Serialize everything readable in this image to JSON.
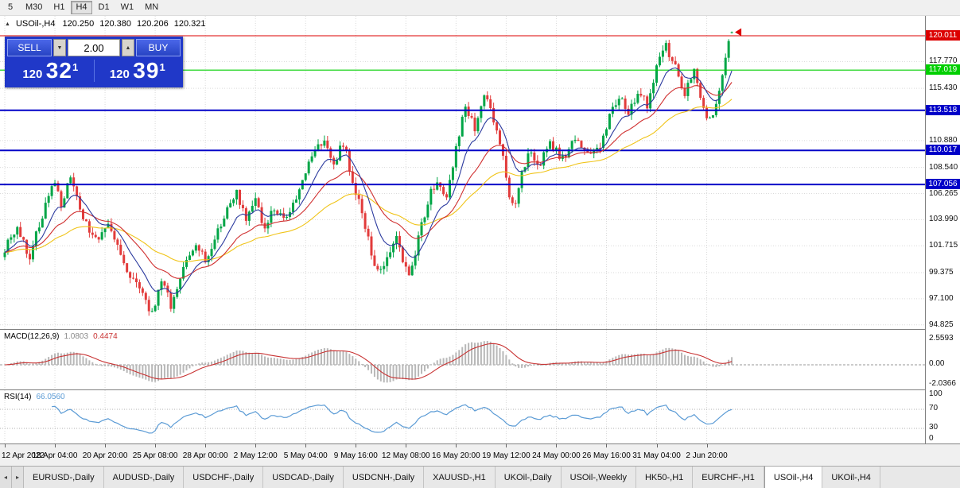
{
  "toolbar": {
    "timeframes": [
      {
        "label": "5"
      },
      {
        "label": "M30"
      },
      {
        "label": "H1"
      },
      {
        "label": "H4",
        "active": true
      },
      {
        "label": "D1"
      },
      {
        "label": "W1"
      },
      {
        "label": "MN"
      }
    ]
  },
  "chart_header": {
    "marker": "▲",
    "symbol": "USOil-,H4",
    "open": "120.250",
    "high": "120.380",
    "low": "120.206",
    "close": "120.321"
  },
  "trade_panel": {
    "sell_label": "SELL",
    "buy_label": "BUY",
    "volume": "2.00",
    "down_arrow": "▼",
    "up_arrow": "▲",
    "sell_price": {
      "whole": "120",
      "pips": "32",
      "sup": "1"
    },
    "buy_price": {
      "whole": "120",
      "pips": "39",
      "sup": "1"
    }
  },
  "price_axis": {
    "labels": [
      "117.770",
      "115.430",
      "110.880",
      "108.540",
      "106.265",
      "103.990",
      "101.715",
      "99.375",
      "97.100",
      "94.825"
    ],
    "badges": [
      {
        "value": "120.011",
        "color": "#dc0000"
      },
      {
        "value": "117.019",
        "color": "#00cf00"
      },
      {
        "value": "113.518",
        "color": "#0000c8"
      },
      {
        "value": "110.017",
        "color": "#0000c8"
      },
      {
        "value": "107.056",
        "color": "#0000c8"
      }
    ]
  },
  "macd": {
    "name": "MACD(12,26,9)",
    "value1": "1.0803",
    "value2": "0.4474",
    "axis": [
      "2.5593",
      "0.00",
      "-2.0366"
    ]
  },
  "rsi": {
    "name": "RSI(14)",
    "value": "66.0560",
    "axis": [
      "100",
      "70",
      "30",
      "0"
    ]
  },
  "time_axis": {
    "labels": [
      "12 Apr 2022",
      "18 Apr 04:00",
      "20 Apr 20:00",
      "25 Apr 08:00",
      "28 Apr 00:00",
      "2 May 12:00",
      "5 May 04:00",
      "9 May 16:00",
      "12 May 08:00",
      "16 May 20:00",
      "19 May 12:00",
      "24 May 00:00",
      "26 May 16:00",
      "31 May 04:00",
      "2 Jun 20:00"
    ]
  },
  "tabs": {
    "scroll_left": "◂",
    "scroll_right": "▸",
    "items": [
      {
        "label": "EURUSD-,Daily"
      },
      {
        "label": "AUDUSD-,Daily"
      },
      {
        "label": "USDCHF-,Daily"
      },
      {
        "label": "USDCAD-,Daily"
      },
      {
        "label": "USDCNH-,Daily"
      },
      {
        "label": "XAUUSD-,H1"
      },
      {
        "label": "UKOil-,Daily"
      },
      {
        "label": "USOil-,Weekly"
      },
      {
        "label": "HK50-,H1"
      },
      {
        "label": "EURCHF-,H1"
      },
      {
        "label": "USOil-,H4",
        "active": true
      },
      {
        "label": "UKOil-,H4"
      }
    ]
  },
  "chart_data": {
    "type": "candlestick",
    "symbol": "USOil-",
    "timeframe": "H4",
    "visible_range": {
      "price_min": 94.6,
      "price_max": 121.6,
      "time_start": "12 Apr 2022",
      "time_end": "2 Jun 20:00"
    },
    "last_quote": {
      "open": 120.25,
      "high": 120.38,
      "low": 120.206,
      "close": 120.321
    },
    "horizontal_lines": [
      {
        "price": 120.011,
        "color": "#dc0000",
        "width": 1
      },
      {
        "price": 117.019,
        "color": "#00cf00",
        "width": 1.2
      },
      {
        "price": 113.518,
        "color": "#0000c8",
        "width": 2
      },
      {
        "price": 110.017,
        "color": "#0000c8",
        "width": 2
      },
      {
        "price": 107.056,
        "color": "#0000c8",
        "width": 2
      }
    ],
    "candle_count": 233,
    "noise_seed": 987654321,
    "body_noise": 0.85,
    "wick_noise": 0.5,
    "price_path": [
      [
        0,
        101.5
      ],
      [
        4,
        103.2
      ],
      [
        8,
        100.8
      ],
      [
        13,
        105.3
      ],
      [
        16,
        107.4
      ],
      [
        18,
        105.2
      ],
      [
        21,
        107.6
      ],
      [
        24,
        104.8
      ],
      [
        27,
        103.1
      ],
      [
        30,
        102.0
      ],
      [
        33,
        103.6
      ],
      [
        36,
        101.5
      ],
      [
        40,
        99.2
      ],
      [
        44,
        97.2
      ],
      [
        47,
        95.8
      ],
      [
        50,
        98.6
      ],
      [
        53,
        96.6
      ],
      [
        57,
        99.6
      ],
      [
        61,
        101.8
      ],
      [
        64,
        100.3
      ],
      [
        68,
        103.0
      ],
      [
        71,
        105.0
      ],
      [
        74,
        106.4
      ],
      [
        77,
        104.1
      ],
      [
        80,
        105.6
      ],
      [
        83,
        103.2
      ],
      [
        86,
        105.1
      ],
      [
        90,
        103.9
      ],
      [
        93,
        105.8
      ],
      [
        96,
        108.2
      ],
      [
        99,
        110.4
      ],
      [
        102,
        110.9
      ],
      [
        105,
        108.9
      ],
      [
        108,
        110.6
      ],
      [
        111,
        107.5
      ],
      [
        114,
        104.5
      ],
      [
        117,
        101.0
      ],
      [
        119,
        99.3
      ],
      [
        122,
        100.9
      ],
      [
        125,
        102.6
      ],
      [
        127,
        100.1
      ],
      [
        129,
        99.2
      ],
      [
        132,
        102.3
      ],
      [
        135,
        105.6
      ],
      [
        138,
        107.6
      ],
      [
        141,
        106.1
      ],
      [
        144,
        110.2
      ],
      [
        147,
        113.9
      ],
      [
        150,
        112.1
      ],
      [
        153,
        114.9
      ],
      [
        156,
        112.6
      ],
      [
        159,
        109.6
      ],
      [
        161,
        106.2
      ],
      [
        163,
        105.3
      ],
      [
        165,
        107.9
      ],
      [
        167,
        109.9
      ],
      [
        170,
        108.6
      ],
      [
        174,
        110.4
      ],
      [
        178,
        109.4
      ],
      [
        182,
        110.9
      ],
      [
        186,
        109.7
      ],
      [
        190,
        110.4
      ],
      [
        193,
        112.9
      ],
      [
        196,
        114.6
      ],
      [
        199,
        113.4
      ],
      [
        202,
        115.1
      ],
      [
        205,
        114.0
      ],
      [
        208,
        117.4
      ],
      [
        211,
        119.2
      ],
      [
        213,
        117.8
      ],
      [
        215,
        116.4
      ],
      [
        217,
        114.9
      ],
      [
        220,
        116.9
      ],
      [
        223,
        113.4
      ],
      [
        225,
        112.5
      ],
      [
        227,
        114.3
      ],
      [
        229,
        116.2
      ],
      [
        231,
        119.8
      ],
      [
        232,
        120.32
      ]
    ],
    "indicators": {
      "macd": {
        "fast": 12,
        "slow": 26,
        "signal_period": 9,
        "current_values": [
          1.0803,
          0.4474
        ]
      },
      "rsi": {
        "period": 14,
        "current_value": 66.056
      },
      "moving_averages": [
        {
          "period": 52,
          "color": "#f0c419"
        },
        {
          "period": 24,
          "color": "#d03030"
        },
        {
          "period": 10,
          "color": "#2b3a9e"
        }
      ]
    }
  },
  "colors": {
    "candle_up": "#00a546",
    "candle_down": "#e23b3b",
    "macd_hist": "#b8b8b8",
    "macd_signal": "#c83232",
    "rsi_line": "#5b9bd5",
    "grid": "#dadada",
    "panel_blue": "#2038c8"
  }
}
